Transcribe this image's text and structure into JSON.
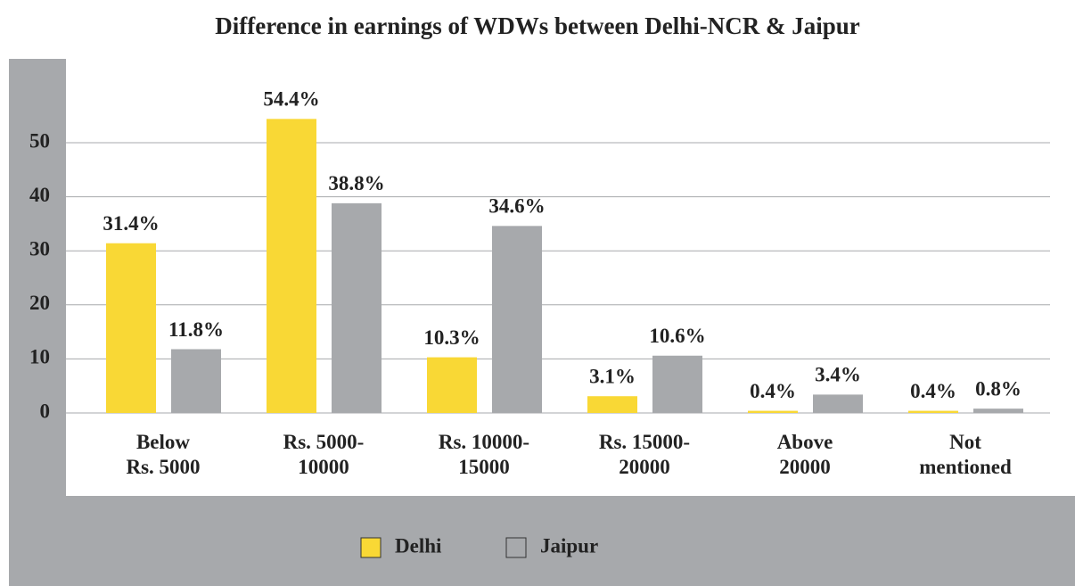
{
  "chart_data": {
    "type": "bar",
    "title": "Difference in earnings of WDWs between Delhi-NCR & Jaipur",
    "categories": [
      [
        "Below",
        "Rs. 5000"
      ],
      [
        "Rs. 5000-",
        "10000"
      ],
      [
        "Rs. 10000-",
        "15000"
      ],
      [
        "Rs. 15000-",
        "20000"
      ],
      [
        "Above",
        "20000"
      ],
      [
        "Not",
        "mentioned"
      ]
    ],
    "series": [
      {
        "name": "Delhi",
        "color": "#f9d835",
        "values": [
          31.4,
          54.4,
          10.3,
          3.1,
          0.4,
          0.4
        ],
        "value_labels": [
          "31.4%",
          "54.4%",
          "10.3%",
          "3.1%",
          "0.4%",
          "0.4%"
        ]
      },
      {
        "name": "Jaipur",
        "color": "#a7a9ac",
        "values": [
          11.8,
          38.8,
          34.6,
          10.6,
          3.4,
          0.8
        ],
        "value_labels": [
          "11.8%",
          "38.8%",
          "34.6%",
          "10.6%",
          "3.4%",
          "0.8%"
        ]
      }
    ],
    "ylim": [
      0,
      60
    ],
    "yticks": [
      0,
      10,
      20,
      30,
      40,
      50
    ],
    "grid": true
  }
}
